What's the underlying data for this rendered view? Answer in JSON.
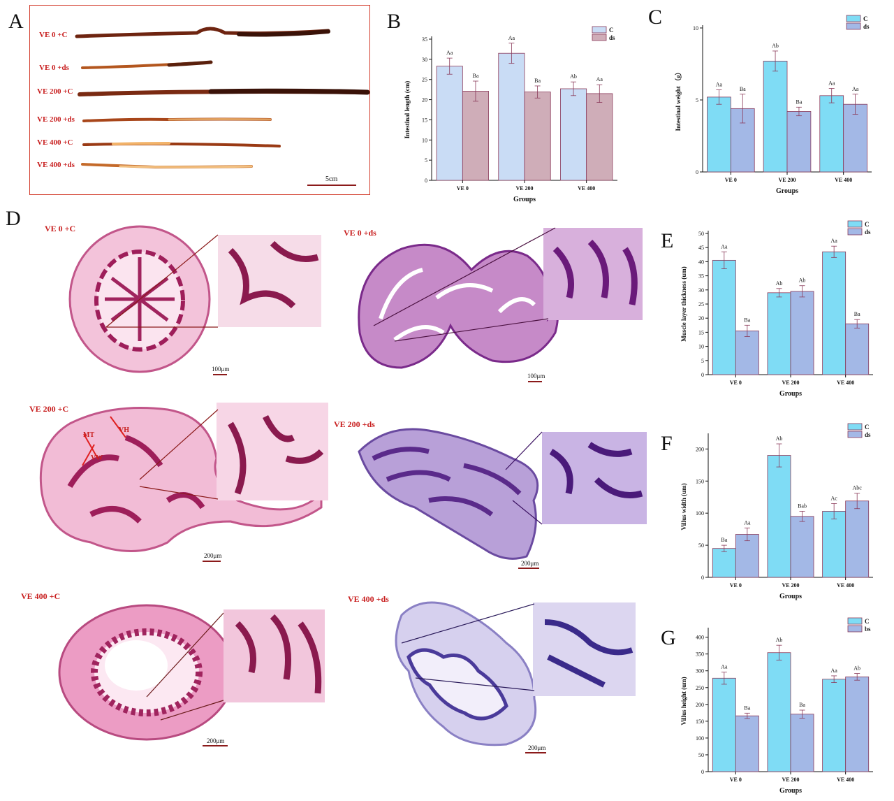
{
  "panel_letters": {
    "A": "A",
    "B": "B",
    "C": "C",
    "D": "D",
    "E": "E",
    "F": "F",
    "G": "G"
  },
  "panelA": {
    "rows": [
      "VE 0 +C",
      "VE 0 +ds",
      "VE 200 +C",
      "VE 200 +ds",
      "VE 400 +C",
      "VE 400 +ds"
    ],
    "scale": "5cm"
  },
  "panelD": {
    "labels": [
      "VE 0 +C",
      "VE 0 +ds",
      "VE 200 +C",
      "VE 200 +ds",
      "VE 400 +C",
      "VE 400 +ds"
    ],
    "scales": [
      "100μm",
      "100μm",
      "200μm",
      "200μm",
      "200μm",
      "200μm"
    ],
    "annotations": [
      "MT",
      "VH",
      "VW"
    ]
  },
  "colors": {
    "c_light": "#c9dcf5",
    "ds_mauve": "#cfadb8",
    "c_cyan": "#7fdcf5",
    "ds_blue": "#a3b8e6",
    "bar_edge": "#8b3a5a"
  },
  "chart_data": [
    {
      "id": "B",
      "type": "bar",
      "categories": [
        "VE 0",
        "VE 200",
        "VE 400"
      ],
      "series": [
        {
          "name": "C",
          "values": [
            28.3,
            31.5,
            22.7
          ],
          "errors": [
            2.0,
            2.5,
            1.7
          ],
          "labels": [
            "Aa",
            "Aa",
            "Ab"
          ]
        },
        {
          "name": "ds",
          "values": [
            22.1,
            21.9,
            21.5
          ],
          "errors": [
            2.5,
            1.5,
            2.2
          ],
          "labels": [
            "Ba",
            "Ba",
            "Aa"
          ]
        }
      ],
      "xlabel": "Groups",
      "ylabel": "Intestinal length (cm)",
      "ylim": [
        0,
        35
      ],
      "yticks": [
        0,
        5,
        10,
        15,
        20,
        25,
        30,
        35
      ],
      "legend": "top-right"
    },
    {
      "id": "C",
      "type": "bar",
      "categories": [
        "VE 0",
        "VE 200",
        "VE 400"
      ],
      "series": [
        {
          "name": "C",
          "values": [
            5.2,
            7.7,
            5.3
          ],
          "errors": [
            0.5,
            0.7,
            0.5
          ],
          "labels": [
            "Aa",
            "Ab",
            "Aa"
          ]
        },
        {
          "name": "ds",
          "values": [
            4.4,
            4.2,
            4.7
          ],
          "errors": [
            1.0,
            0.3,
            0.7
          ],
          "labels": [
            "Ba",
            "Ba",
            "Aa"
          ]
        }
      ],
      "xlabel": "Groups",
      "ylabel": "Intestinal weight （g）",
      "ylim": [
        0,
        10
      ],
      "yticks": [
        0,
        5,
        10
      ],
      "legend": "top-right"
    },
    {
      "id": "E",
      "type": "bar",
      "categories": [
        "VE 0",
        "VE 200",
        "VE 400"
      ],
      "series": [
        {
          "name": "C",
          "values": [
            40.5,
            29.0,
            43.5
          ],
          "errors": [
            3.0,
            1.5,
            2.0
          ],
          "labels": [
            "Aa",
            "Ab",
            "Aa"
          ]
        },
        {
          "name": "ds",
          "values": [
            15.5,
            29.5,
            18.0
          ],
          "errors": [
            2.0,
            2.0,
            1.5
          ],
          "labels": [
            "Ba",
            "Ab",
            "Ba"
          ]
        }
      ],
      "xlabel": "Groups",
      "ylabel": "Muscle layer thickness (um)",
      "ylim": [
        0,
        50
      ],
      "yticks": [
        0,
        5,
        10,
        15,
        20,
        25,
        30,
        35,
        40,
        45,
        50
      ],
      "legend": "top-right"
    },
    {
      "id": "F",
      "type": "bar",
      "categories": [
        "VE 0",
        "VE 200",
        "VE 400"
      ],
      "series": [
        {
          "name": "C",
          "values": [
            45,
            190,
            103
          ],
          "errors": [
            5,
            18,
            12
          ],
          "labels": [
            "Ba",
            "Ab",
            "Ac"
          ]
        },
        {
          "name": "ds",
          "values": [
            67,
            95,
            119
          ],
          "errors": [
            10,
            8,
            12
          ],
          "labels": [
            "Aa",
            "Bab",
            "Abc"
          ]
        }
      ],
      "xlabel": "Groups",
      "ylabel": "Villus width (um)",
      "ylim": [
        0,
        220
      ],
      "yticks": [
        0,
        50,
        100,
        150,
        200
      ],
      "legend": "top-right"
    },
    {
      "id": "G",
      "type": "bar",
      "categories": [
        "VE 0",
        "VE 200",
        "VE 400"
      ],
      "series": [
        {
          "name": "C",
          "values": [
            278,
            354,
            275
          ],
          "errors": [
            18,
            22,
            10
          ],
          "labels": [
            "Aa",
            "Ab",
            "Aa"
          ]
        },
        {
          "name": "bs",
          "values": [
            166,
            171,
            282
          ],
          "errors": [
            8,
            12,
            10
          ],
          "labels": [
            "Ba",
            "Ba",
            "Ab"
          ]
        }
      ],
      "xlabel": "Groups",
      "ylabel": "Villus height (um)",
      "ylim": [
        0,
        420
      ],
      "yticks": [
        0,
        50,
        100,
        150,
        200,
        250,
        300,
        350,
        400
      ],
      "legend": "top-right"
    }
  ]
}
